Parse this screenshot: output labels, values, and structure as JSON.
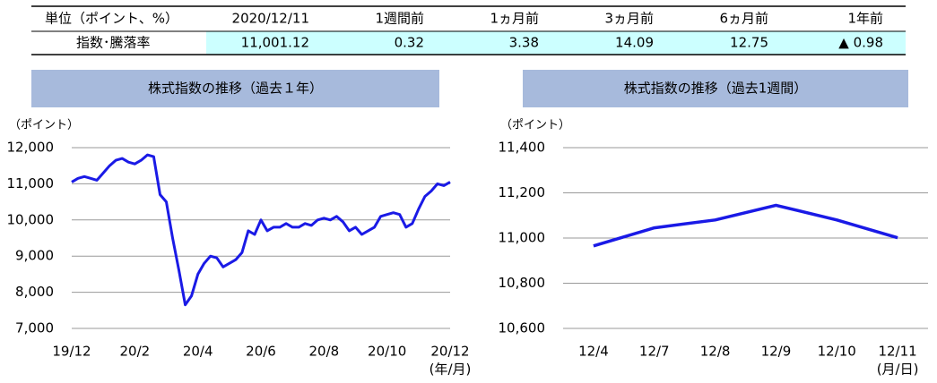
{
  "table": {
    "header": [
      "単位（ポイント、%）",
      "2020/12/11",
      "1週間前",
      "1ヵ月前",
      "3ヵ月前",
      "6ヵ月前",
      "1年前"
    ],
    "rows": [
      [
        "指数･騰落率",
        "11,001.12",
        "0.32",
        "3.38",
        "14.09",
        "12.75",
        "▲ 0.98"
      ]
    ]
  },
  "chart_data": [
    {
      "type": "line",
      "title": "株式指数の推移（過去１年）",
      "y_label": "（ポイント）",
      "x_label": "(年/月)",
      "color": "#1a1ae6",
      "grid": true,
      "categories": [
        "19/12",
        null,
        null,
        null,
        null,
        null,
        null,
        null,
        null,
        null,
        "20/2",
        null,
        null,
        null,
        null,
        null,
        null,
        null,
        null,
        null,
        "20/4",
        null,
        null,
        null,
        null,
        null,
        null,
        null,
        null,
        null,
        "20/6",
        null,
        null,
        null,
        null,
        null,
        null,
        null,
        null,
        null,
        "20/8",
        null,
        null,
        null,
        null,
        null,
        null,
        null,
        null,
        null,
        "20/10",
        null,
        null,
        null,
        null,
        null,
        null,
        null,
        null,
        null,
        "20/12"
      ],
      "values": [
        11050,
        11150,
        11200,
        11150,
        11100,
        11300,
        11500,
        11650,
        11700,
        11600,
        11550,
        11650,
        11800,
        11750,
        10700,
        10500,
        9500,
        8600,
        7650,
        7900,
        8500,
        8800,
        9000,
        8950,
        8700,
        8800,
        8900,
        9100,
        9700,
        9600,
        10000,
        9700,
        9800,
        9800,
        9900,
        9800,
        9800,
        9900,
        9850,
        10000,
        10050,
        10000,
        10100,
        9950,
        9700,
        9800,
        9600,
        9700,
        9800,
        10100,
        10150,
        10200,
        10150,
        9800,
        9900,
        10300,
        10650,
        10800,
        11000,
        10950,
        11050
      ],
      "ylim": [
        7000,
        12000
      ],
      "yticks": [
        {
          "value": 7000,
          "label": "7,000"
        },
        {
          "value": 8000,
          "label": "8,000"
        },
        {
          "value": 9000,
          "label": "9,000"
        },
        {
          "value": 10000,
          "label": "10,000"
        },
        {
          "value": 11000,
          "label": "11,000"
        },
        {
          "value": 12000,
          "label": "12,000"
        }
      ]
    },
    {
      "type": "line",
      "title": "株式指数の推移（過去1週間）",
      "y_label": "（ポイント）",
      "x_label": "(月/日)",
      "color": "#1a1ae6",
      "grid": true,
      "categories": [
        "12/4",
        "12/7",
        "12/8",
        "12/9",
        "12/10",
        "12/11"
      ],
      "values": [
        10965,
        11045,
        11080,
        11145,
        11080,
        11001
      ],
      "ylim": [
        10600,
        11400
      ],
      "yticks": [
        {
          "value": 10600,
          "label": "10,600"
        },
        {
          "value": 10800,
          "label": "10,800"
        },
        {
          "value": 11000,
          "label": "11,000"
        },
        {
          "value": 11200,
          "label": "11,200"
        },
        {
          "value": 11400,
          "label": "11,400"
        }
      ]
    }
  ]
}
